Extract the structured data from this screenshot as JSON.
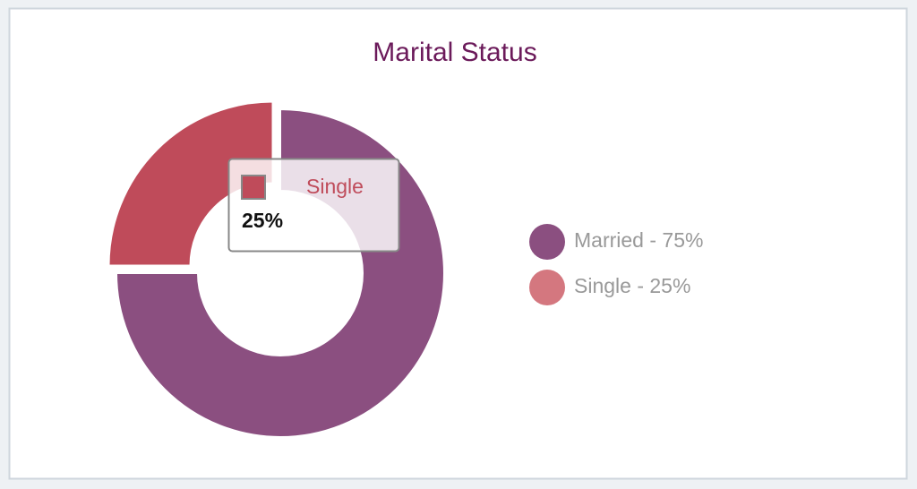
{
  "chart_data": {
    "type": "pie",
    "title": "Marital Status",
    "categories": [
      "Married",
      "Single"
    ],
    "values": [
      75,
      25
    ],
    "colors": [
      "#8b4f80",
      "#d4777f"
    ],
    "highlight_color": "#bf4b5a",
    "legend_labels": [
      "Married - 75%",
      "Single - 25%"
    ],
    "tooltip": {
      "category": "Single",
      "value_label": "25%"
    }
  }
}
